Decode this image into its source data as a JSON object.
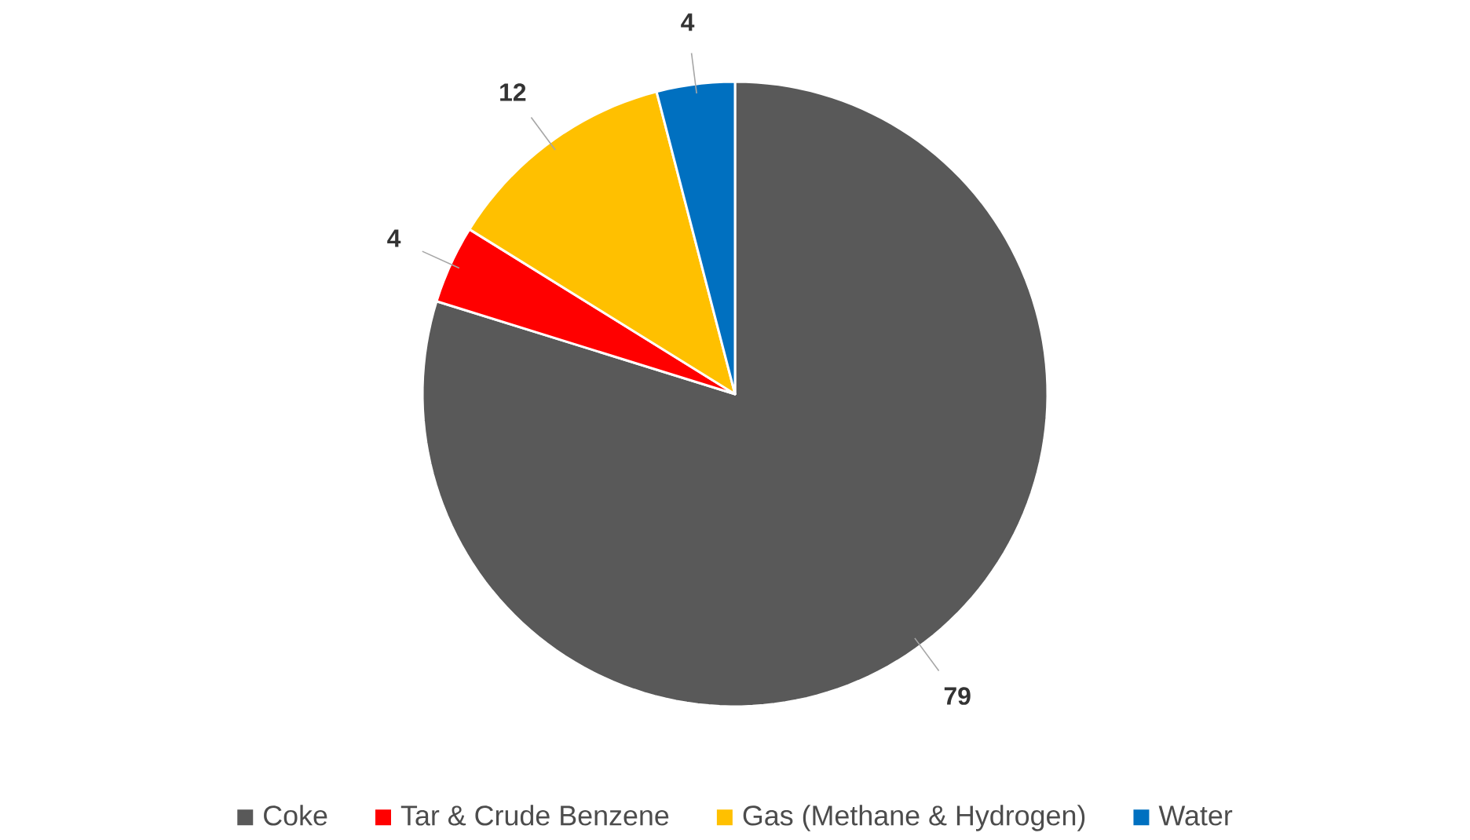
{
  "chart_data": {
    "type": "pie",
    "categories": [
      "Coke",
      "Tar & Crude Benzene",
      "Gas (Methane & Hydrogen)",
      "Water"
    ],
    "values": [
      79,
      4,
      12,
      4
    ],
    "colors": [
      "#595959",
      "#ff0000",
      "#ffc000",
      "#0070c0"
    ],
    "data_labels": true,
    "legend": "bottom"
  }
}
